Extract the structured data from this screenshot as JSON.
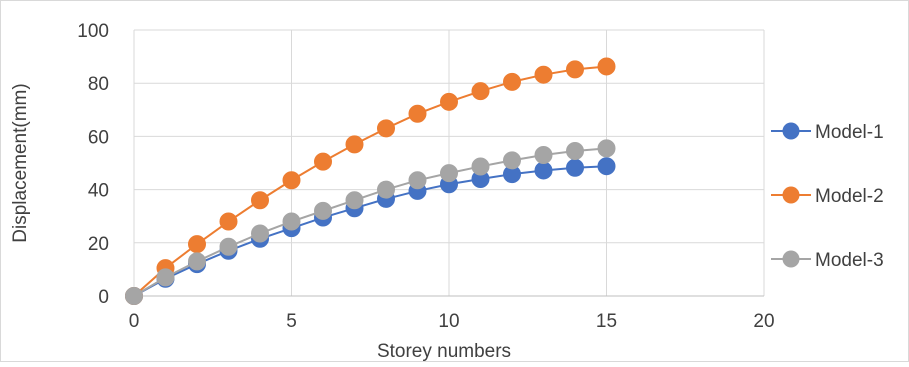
{
  "chart_data": {
    "type": "line",
    "title": "",
    "xlabel": "Storey numbers",
    "ylabel": "Displacement(mm)",
    "xlim": [
      0,
      20
    ],
    "ylim": [
      0,
      100
    ],
    "x_ticks": [
      "0",
      "5",
      "10",
      "15",
      "20"
    ],
    "y_ticks": [
      "0",
      "20",
      "40",
      "60",
      "80",
      "100"
    ],
    "grid": true,
    "legend_position": "right",
    "x": [
      0,
      1,
      2,
      3,
      4,
      5,
      6,
      7,
      8,
      9,
      10,
      11,
      12,
      13,
      14,
      15
    ],
    "series": [
      {
        "name": "Model-1",
        "color": "#4472c4",
        "values": [
          0,
          6.5,
          12,
          17,
          21.5,
          25.5,
          29.5,
          33,
          36.5,
          39.5,
          42,
          44,
          45.8,
          47.2,
          48.2,
          48.8
        ]
      },
      {
        "name": "Model-2",
        "color": "#ed7d31",
        "values": [
          0,
          10.5,
          19.5,
          28,
          36,
          43.5,
          50.5,
          57,
          63,
          68.5,
          73,
          77,
          80.5,
          83.2,
          85.2,
          86.3
        ]
      },
      {
        "name": "Model-3",
        "color": "#a5a5a5",
        "values": [
          0,
          7,
          13,
          18.5,
          23.5,
          28,
          32,
          36,
          40,
          43.5,
          46.2,
          48.7,
          51,
          53,
          54.5,
          55.5
        ]
      }
    ]
  }
}
